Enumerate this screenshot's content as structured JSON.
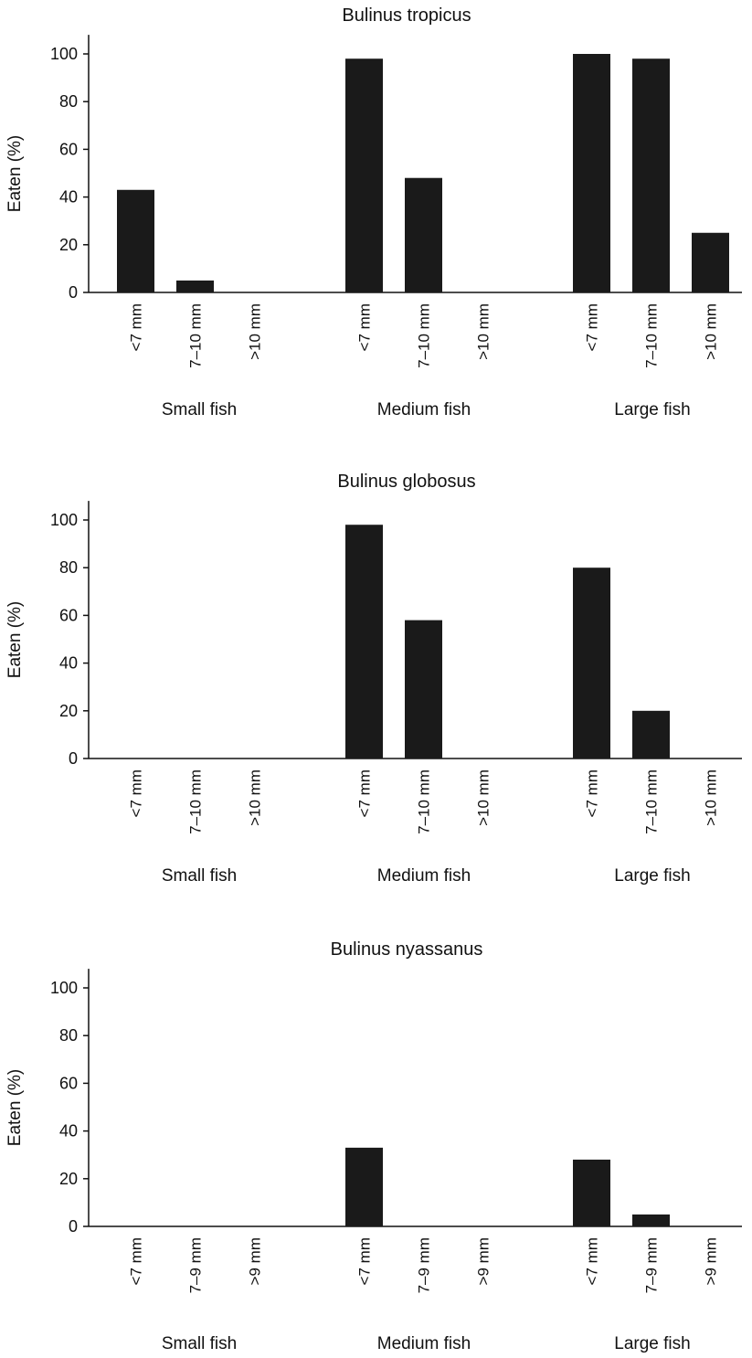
{
  "chart_data": [
    {
      "type": "bar",
      "title": "Bulinus tropicus",
      "ylabel": "Eaten (%)",
      "xlabel": "",
      "ylim": [
        0,
        108
      ],
      "yticks": [
        0,
        20,
        40,
        60,
        80,
        100
      ],
      "groups": [
        {
          "name": "Small fish",
          "categories": [
            "<7 mm",
            "7–10 mm",
            ">10 mm"
          ],
          "values": [
            43,
            5,
            0
          ]
        },
        {
          "name": "Medium fish",
          "categories": [
            "<7 mm",
            "7–10 mm",
            ">10 mm"
          ],
          "values": [
            98,
            48,
            0
          ]
        },
        {
          "name": "Large fish",
          "categories": [
            "<7 mm",
            "7–10 mm",
            ">10 mm"
          ],
          "values": [
            100,
            98,
            25
          ]
        }
      ],
      "bar_color": "#1a1a1a"
    },
    {
      "type": "bar",
      "title": "Bulinus globosus",
      "ylabel": "Eaten (%)",
      "xlabel": "",
      "ylim": [
        0,
        108
      ],
      "yticks": [
        0,
        20,
        40,
        60,
        80,
        100
      ],
      "groups": [
        {
          "name": "Small fish",
          "categories": [
            "<7 mm",
            "7–10 mm",
            ">10 mm"
          ],
          "values": [
            0,
            0,
            0
          ]
        },
        {
          "name": "Medium fish",
          "categories": [
            "<7 mm",
            "7–10 mm",
            ">10 mm"
          ],
          "values": [
            98,
            58,
            0
          ]
        },
        {
          "name": "Large fish",
          "categories": [
            "<7 mm",
            "7–10 mm",
            ">10 mm"
          ],
          "values": [
            80,
            20,
            0
          ]
        }
      ],
      "bar_color": "#1a1a1a"
    },
    {
      "type": "bar",
      "title": "Bulinus nyassanus",
      "ylabel": "Eaten (%)",
      "xlabel": "",
      "ylim": [
        0,
        108
      ],
      "yticks": [
        0,
        20,
        40,
        60,
        80,
        100
      ],
      "groups": [
        {
          "name": "Small fish",
          "categories": [
            "<7 mm",
            "7–9 mm",
            ">9 mm"
          ],
          "values": [
            0,
            0,
            0
          ]
        },
        {
          "name": "Medium fish",
          "categories": [
            "<7 mm",
            "7–9 mm",
            ">9 mm"
          ],
          "values": [
            33,
            0,
            0
          ]
        },
        {
          "name": "Large fish",
          "categories": [
            "<7 mm",
            "7–9 mm",
            ">9 mm"
          ],
          "values": [
            28,
            5,
            0
          ]
        }
      ],
      "bar_color": "#1a1a1a"
    }
  ]
}
